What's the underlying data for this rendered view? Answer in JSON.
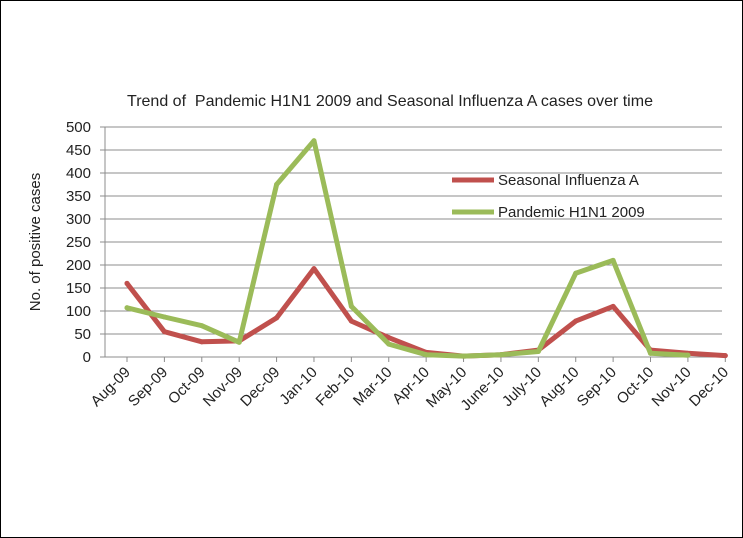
{
  "chart_data": {
    "type": "line",
    "title": "Trend of  Pandemic H1N1 2009 and Seasonal Influenza A cases over time",
    "xlabel": "",
    "ylabel": "No. of positive cases",
    "categories": [
      "Aug-09",
      "Sep-09",
      "Oct-09",
      "Nov-09",
      "Dec-09",
      "Jan-10",
      "Feb-10",
      "Mar-10",
      "Apr-10",
      "May-10",
      "June-10",
      "July-10",
      "Aug-10",
      "Sep-10",
      "Oct-10",
      "Nov-10",
      "Dec-10"
    ],
    "ylim": [
      0,
      500
    ],
    "yticks": [
      0,
      50,
      100,
      150,
      200,
      250,
      300,
      350,
      400,
      450,
      500
    ],
    "grid": true,
    "legend_position": "right",
    "series": [
      {
        "name": "Seasonal Influenza  A",
        "color": "#c0504d",
        "values": [
          160,
          55,
          33,
          35,
          85,
          192,
          78,
          42,
          10,
          2,
          5,
          15,
          78,
          110,
          15,
          8,
          3
        ]
      },
      {
        "name": "Pandemic H1N1 2009",
        "color": "#9bbb59",
        "values": [
          107,
          87,
          68,
          32,
          375,
          470,
          110,
          28,
          5,
          2,
          5,
          12,
          182,
          210,
          8,
          4,
          null
        ]
      }
    ]
  }
}
